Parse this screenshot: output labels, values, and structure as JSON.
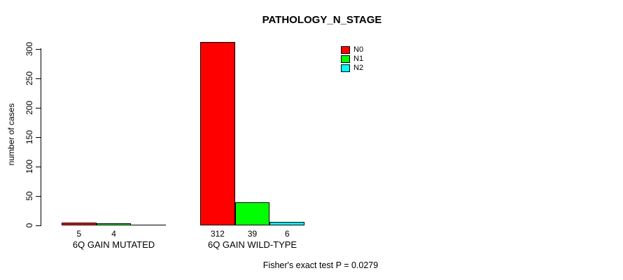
{
  "chart_data": {
    "type": "bar",
    "title": "PATHOLOGY_N_STAGE",
    "ylabel": "number of cases",
    "xlabel": "",
    "ylim": [
      0,
      300
    ],
    "yticks": [
      0,
      50,
      100,
      150,
      200,
      250,
      300
    ],
    "categories": [
      "6Q GAIN MUTATED",
      "6Q GAIN WILD-TYPE"
    ],
    "series": [
      {
        "name": "N0",
        "color": "#ff0000",
        "values": [
          5,
          312
        ]
      },
      {
        "name": "N1",
        "color": "#00ff00",
        "values": [
          4,
          39
        ]
      },
      {
        "name": "N2",
        "color": "#00ffff",
        "values": [
          0,
          6
        ]
      }
    ],
    "legend": {
      "position": "top-right",
      "entries": [
        "N0",
        "N1",
        "N2"
      ]
    },
    "grid": false,
    "bar_value_labels": true,
    "zero_value_labels_hidden": true,
    "annotation": "Fisher's exact test P = 0.0279"
  },
  "colors": {
    "background": "#ffffff",
    "axis": "#000000",
    "text": "#000000"
  }
}
